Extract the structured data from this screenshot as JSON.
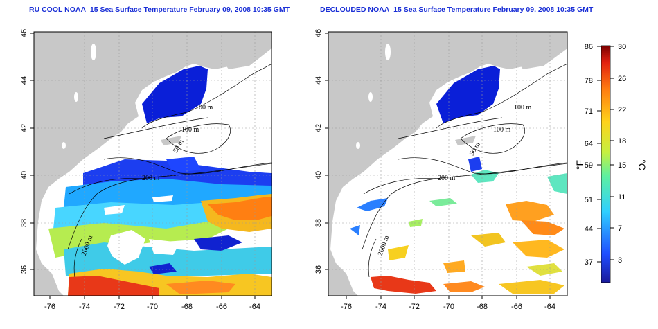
{
  "panels": [
    {
      "title": "RU COOL NOAA–15 Sea Surface Temperature February 09, 2008 10:35 GMT",
      "contour_labels": [
        "100 m",
        "100 m",
        "50 m",
        "200 m",
        "2000 m"
      ]
    },
    {
      "title": "DECLOUDED NOAA–15 Sea Surface Temperature February 09, 2008 10:35 GMT",
      "contour_labels": [
        "100 m",
        "100 m",
        "50 m",
        "200 m",
        "2000 m"
      ]
    }
  ],
  "axes": {
    "x_ticks": [
      "-76",
      "-74",
      "-72",
      "-70",
      "-68",
      "-66",
      "-64"
    ],
    "y_ticks": [
      "36",
      "38",
      "40",
      "42",
      "44",
      "46"
    ]
  },
  "colorbar": {
    "fahrenheit_ticks": [
      "86",
      "78",
      "71",
      "64",
      "59",
      "51",
      "44",
      "37"
    ],
    "celsius_ticks": [
      "30",
      "26",
      "22",
      "18",
      "15",
      "11",
      "7",
      "3"
    ],
    "fahrenheit_unit": "°F",
    "celsius_unit": "°C"
  },
  "colors": {
    "title": "#1a2fd6",
    "land": "#c8c8c8",
    "cold": "#0a1fd8",
    "warm": "#e0301a"
  }
}
